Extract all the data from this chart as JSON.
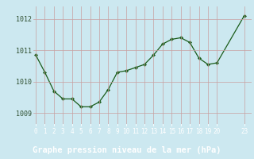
{
  "x": [
    0,
    1,
    2,
    3,
    4,
    5,
    6,
    7,
    8,
    9,
    10,
    11,
    12,
    13,
    14,
    15,
    16,
    17,
    18,
    19,
    20,
    23
  ],
  "y": [
    1010.85,
    1010.3,
    1009.7,
    1009.45,
    1009.45,
    1009.2,
    1009.2,
    1009.35,
    1009.75,
    1010.3,
    1010.35,
    1010.45,
    1010.55,
    1010.85,
    1011.2,
    1011.35,
    1011.4,
    1011.25,
    1010.75,
    1010.55,
    1010.6,
    1012.1
  ],
  "line_color": "#1a5c1a",
  "marker_color": "#1a5c1a",
  "bg_color": "#cce8f0",
  "footer_bg": "#2d6e2d",
  "grid_color": "#c8a0a0",
  "footer_text": "Graphe pression niveau de la mer (hPa)",
  "footer_text_color": "#ffffff",
  "xtick_color": "#ffffff",
  "ytick_color": "#2d4d2d",
  "yticks": [
    1009,
    1010,
    1011,
    1012
  ],
  "xticks": [
    0,
    1,
    2,
    3,
    4,
    5,
    6,
    7,
    8,
    9,
    10,
    11,
    12,
    13,
    14,
    15,
    16,
    17,
    18,
    19,
    20,
    23
  ],
  "ylim": [
    1008.65,
    1012.4
  ],
  "xlim": [
    -0.3,
    23.8
  ],
  "footer_fontsize": 7.5,
  "tick_fontsize": 5.5,
  "ytick_fontsize": 6.0
}
